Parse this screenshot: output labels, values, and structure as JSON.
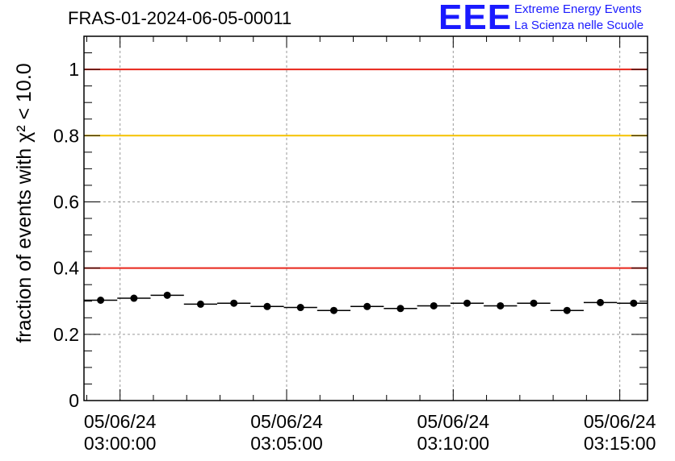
{
  "header": {
    "title": "FRAS-01-2024-06-05-00011",
    "logo_text": "EEE",
    "logo_line1": "Extreme Energy Events",
    "logo_line2": "La Scienza nelle Scuole"
  },
  "chart_data": {
    "type": "scatter",
    "title": "FRAS-01-2024-06-05-00011",
    "ylabel": "fraction of events with χ² < 10.0",
    "ylim": [
      0,
      1.1
    ],
    "yticks": [
      0,
      0.2,
      0.4,
      0.6,
      0.8,
      1
    ],
    "ytick_labels": [
      "0",
      "0.2",
      "0.4",
      "0.6",
      "0.8",
      "1"
    ],
    "xticks": [
      {
        "date": "05/06/24",
        "time": "03:00:00"
      },
      {
        "date": "05/06/24",
        "time": "03:05:00"
      },
      {
        "date": "05/06/24",
        "time": "03:10:00"
      },
      {
        "date": "05/06/24",
        "time": "03:15:00"
      }
    ],
    "xlim": [
      "02:58:55",
      "03:15:50"
    ],
    "grid": true,
    "bin_width_seconds": 60,
    "reference_lines": [
      {
        "y": 1.0,
        "color": "#e8251a"
      },
      {
        "y": 0.8,
        "color": "#f5c200"
      },
      {
        "y": 0.4,
        "color": "#e8251a"
      }
    ],
    "series": [
      {
        "marker_color": "#000000",
        "x": [
          "02:59:25",
          "03:00:25",
          "03:01:25",
          "03:02:25",
          "03:03:25",
          "03:04:25",
          "03:05:25",
          "03:06:25",
          "03:07:25",
          "03:08:25",
          "03:09:25",
          "03:10:25",
          "03:11:25",
          "03:12:25",
          "03:13:25",
          "03:14:25",
          "03:15:25"
        ],
        "values": [
          0.303,
          0.309,
          0.318,
          0.291,
          0.294,
          0.284,
          0.281,
          0.272,
          0.284,
          0.278,
          0.286,
          0.294,
          0.286,
          0.294,
          0.272,
          0.296,
          0.294
        ]
      }
    ]
  }
}
